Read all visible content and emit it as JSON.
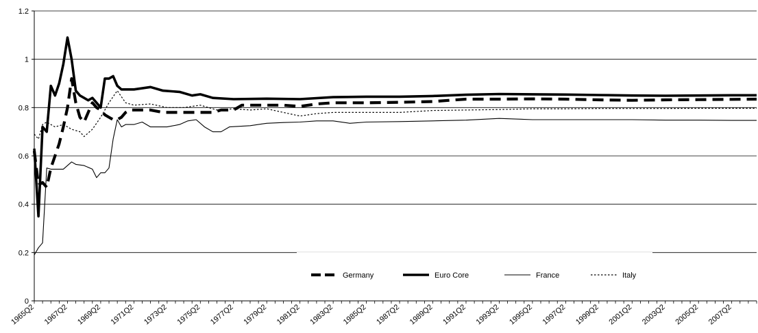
{
  "chart_data": {
    "type": "line",
    "title": "",
    "xlabel": "",
    "ylabel": "",
    "ylim": [
      0,
      1.2
    ],
    "yticks": [
      "0",
      "0.2",
      "0.4",
      "0.6",
      "0.8",
      "1",
      "1.2"
    ],
    "grid": "horizontal",
    "legend_position": "bottom-right",
    "x_tick_labels": [
      "1965Q2",
      "1967Q2",
      "1969Q2",
      "1971Q2",
      "1973Q2",
      "1975Q2",
      "1977Q2",
      "1979Q2",
      "1981Q2",
      "1983Q2",
      "1985Q2",
      "1987Q2",
      "1989Q2",
      "1991Q2",
      "1993Q2",
      "1995Q2",
      "1997Q2",
      "1999Q2",
      "2001Q2",
      "2003Q2",
      "2005Q2",
      "2007Q2"
    ],
    "x_start": "1965Q2",
    "x_end": "2008Q4",
    "series": [
      {
        "name": "Germany",
        "style": "long-dash",
        "color": "#000000",
        "points": [
          [
            "1965Q2",
            0.62
          ],
          [
            "1965Q3",
            0.48
          ],
          [
            "1965Q4",
            0.49
          ],
          [
            "1966Q1",
            0.47
          ],
          [
            "1966Q2",
            0.55
          ],
          [
            "1966Q3",
            0.6
          ],
          [
            "1966Q4",
            0.65
          ],
          [
            "1967Q1",
            0.72
          ],
          [
            "1967Q2",
            0.8
          ],
          [
            "1967Q3",
            0.92
          ],
          [
            "1967Q4",
            0.82
          ],
          [
            "1968Q1",
            0.76
          ],
          [
            "1968Q2",
            0.74
          ],
          [
            "1968Q3",
            0.78
          ],
          [
            "1968Q4",
            0.82
          ],
          [
            "1969Q1",
            0.8
          ],
          [
            "1969Q2",
            0.79
          ],
          [
            "1969Q3",
            0.77
          ],
          [
            "1969Q4",
            0.76
          ],
          [
            "1970Q1",
            0.75
          ],
          [
            "1970Q2",
            0.75
          ],
          [
            "1970Q3",
            0.76
          ],
          [
            "1970Q4",
            0.78
          ],
          [
            "1971Q1",
            0.79
          ],
          [
            "1971Q2",
            0.79
          ],
          [
            "1972Q2",
            0.79
          ],
          [
            "1973Q1",
            0.78
          ],
          [
            "1974Q1",
            0.78
          ],
          [
            "1975Q1",
            0.78
          ],
          [
            "1976Q1",
            0.78
          ],
          [
            "1976Q3",
            0.79
          ],
          [
            "1977Q2",
            0.79
          ],
          [
            "1977Q4",
            0.81
          ],
          [
            "1978Q2",
            0.81
          ],
          [
            "1980Q2",
            0.81
          ],
          [
            "1981Q2",
            0.805
          ],
          [
            "1982Q2",
            0.815
          ],
          [
            "1983Q2",
            0.82
          ],
          [
            "1985Q2",
            0.82
          ],
          [
            "1987Q2",
            0.822
          ],
          [
            "1989Q2",
            0.825
          ],
          [
            "1990Q2",
            0.83
          ],
          [
            "1991Q2",
            0.835
          ],
          [
            "1993Q2",
            0.835
          ],
          [
            "1995Q2",
            0.836
          ],
          [
            "1997Q2",
            0.835
          ],
          [
            "1999Q2",
            0.832
          ],
          [
            "2001Q2",
            0.83
          ],
          [
            "2003Q2",
            0.832
          ],
          [
            "2005Q2",
            0.833
          ],
          [
            "2007Q2",
            0.834
          ],
          [
            "2008Q4",
            0.835
          ]
        ]
      },
      {
        "name": "Euro Core",
        "style": "solid-thick",
        "color": "#000000",
        "points": [
          [
            "1965Q2",
            0.63
          ],
          [
            "1965Q3",
            0.35
          ],
          [
            "1965Q4",
            0.72
          ],
          [
            "1966Q1",
            0.7
          ],
          [
            "1966Q2",
            0.89
          ],
          [
            "1966Q3",
            0.85
          ],
          [
            "1966Q4",
            0.9
          ],
          [
            "1967Q1",
            0.98
          ],
          [
            "1967Q2",
            1.09
          ],
          [
            "1967Q3",
            1.0
          ],
          [
            "1967Q4",
            0.87
          ],
          [
            "1968Q1",
            0.85
          ],
          [
            "1968Q2",
            0.84
          ],
          [
            "1968Q3",
            0.83
          ],
          [
            "1968Q4",
            0.84
          ],
          [
            "1969Q1",
            0.82
          ],
          [
            "1969Q2",
            0.8
          ],
          [
            "1969Q3",
            0.92
          ],
          [
            "1969Q4",
            0.92
          ],
          [
            "1970Q1",
            0.93
          ],
          [
            "1970Q2",
            0.89
          ],
          [
            "1970Q3",
            0.875
          ],
          [
            "1971Q2",
            0.875
          ],
          [
            "1972Q2",
            0.885
          ],
          [
            "1973Q1",
            0.87
          ],
          [
            "1974Q1",
            0.865
          ],
          [
            "1974Q4",
            0.85
          ],
          [
            "1975Q2",
            0.855
          ],
          [
            "1976Q1",
            0.84
          ],
          [
            "1977Q2",
            0.835
          ],
          [
            "1979Q2",
            0.837
          ],
          [
            "1981Q2",
            0.835
          ],
          [
            "1983Q2",
            0.843
          ],
          [
            "1985Q2",
            0.845
          ],
          [
            "1987Q2",
            0.845
          ],
          [
            "1989Q2",
            0.848
          ],
          [
            "1991Q2",
            0.853
          ],
          [
            "1993Q2",
            0.856
          ],
          [
            "1995Q2",
            0.855
          ],
          [
            "1997Q2",
            0.854
          ],
          [
            "1999Q2",
            0.852
          ],
          [
            "2001Q2",
            0.85
          ],
          [
            "2003Q2",
            0.849
          ],
          [
            "2005Q2",
            0.85
          ],
          [
            "2007Q2",
            0.851
          ],
          [
            "2008Q4",
            0.851
          ]
        ]
      },
      {
        "name": "France",
        "style": "solid-thin",
        "color": "#000000",
        "points": [
          [
            "1965Q2",
            0.19
          ],
          [
            "1965Q3",
            0.22
          ],
          [
            "1965Q4",
            0.24
          ],
          [
            "1966Q1",
            0.55
          ],
          [
            "1966Q2",
            0.545
          ],
          [
            "1966Q3",
            0.545
          ],
          [
            "1967Q1",
            0.545
          ],
          [
            "1967Q2",
            0.56
          ],
          [
            "1967Q3",
            0.575
          ],
          [
            "1967Q4",
            0.565
          ],
          [
            "1968Q2",
            0.56
          ],
          [
            "1968Q4",
            0.545
          ],
          [
            "1969Q1",
            0.51
          ],
          [
            "1969Q2",
            0.53
          ],
          [
            "1969Q3",
            0.53
          ],
          [
            "1969Q4",
            0.55
          ],
          [
            "1970Q1",
            0.67
          ],
          [
            "1970Q2",
            0.75
          ],
          [
            "1970Q3",
            0.72
          ],
          [
            "1970Q4",
            0.73
          ],
          [
            "1971Q2",
            0.73
          ],
          [
            "1971Q4",
            0.74
          ],
          [
            "1972Q2",
            0.72
          ],
          [
            "1973Q2",
            0.72
          ],
          [
            "1974Q1",
            0.73
          ],
          [
            "1974Q3",
            0.745
          ],
          [
            "1975Q1",
            0.75
          ],
          [
            "1975Q3",
            0.72
          ],
          [
            "1976Q1",
            0.7
          ],
          [
            "1976Q3",
            0.7
          ],
          [
            "1977Q1",
            0.72
          ],
          [
            "1978Q2",
            0.725
          ],
          [
            "1979Q2",
            0.735
          ],
          [
            "1980Q2",
            0.738
          ],
          [
            "1981Q2",
            0.74
          ],
          [
            "1982Q2",
            0.745
          ],
          [
            "1983Q2",
            0.745
          ],
          [
            "1984Q2",
            0.735
          ],
          [
            "1985Q2",
            0.74
          ],
          [
            "1987Q2",
            0.742
          ],
          [
            "1989Q2",
            0.745
          ],
          [
            "1991Q2",
            0.748
          ],
          [
            "1993Q2",
            0.755
          ],
          [
            "1995Q2",
            0.75
          ],
          [
            "1997Q2",
            0.75
          ],
          [
            "1999Q2",
            0.75
          ],
          [
            "2001Q2",
            0.75
          ],
          [
            "2003Q2",
            0.748
          ],
          [
            "2005Q2",
            0.748
          ],
          [
            "2007Q2",
            0.747
          ],
          [
            "2008Q4",
            0.747
          ]
        ]
      },
      {
        "name": "Italy",
        "style": "dotted",
        "color": "#000000",
        "points": [
          [
            "1965Q2",
            0.69
          ],
          [
            "1965Q3",
            0.67
          ],
          [
            "1965Q4",
            0.73
          ],
          [
            "1966Q1",
            0.74
          ],
          [
            "1966Q2",
            0.73
          ],
          [
            "1966Q3",
            0.72
          ],
          [
            "1967Q1",
            0.73
          ],
          [
            "1967Q2",
            0.72
          ],
          [
            "1967Q3",
            0.71
          ],
          [
            "1968Q1",
            0.7
          ],
          [
            "1968Q2",
            0.68
          ],
          [
            "1968Q4",
            0.71
          ],
          [
            "1969Q2",
            0.76
          ],
          [
            "1969Q4",
            0.82
          ],
          [
            "1970Q2",
            0.87
          ],
          [
            "1970Q4",
            0.82
          ],
          [
            "1971Q2",
            0.81
          ],
          [
            "1972Q2",
            0.815
          ],
          [
            "1973Q2",
            0.8
          ],
          [
            "1974Q2",
            0.8
          ],
          [
            "1975Q2",
            0.81
          ],
          [
            "1976Q2",
            0.79
          ],
          [
            "1977Q2",
            0.795
          ],
          [
            "1978Q2",
            0.79
          ],
          [
            "1979Q2",
            0.795
          ],
          [
            "1980Q2",
            0.78
          ],
          [
            "1981Q2",
            0.765
          ],
          [
            "1982Q2",
            0.775
          ],
          [
            "1983Q2",
            0.78
          ],
          [
            "1985Q2",
            0.78
          ],
          [
            "1987Q2",
            0.78
          ],
          [
            "1989Q2",
            0.788
          ],
          [
            "1991Q2",
            0.79
          ],
          [
            "1993Q2",
            0.792
          ],
          [
            "1995Q2",
            0.795
          ],
          [
            "1997Q2",
            0.795
          ],
          [
            "1999Q2",
            0.796
          ],
          [
            "2001Q2",
            0.796
          ],
          [
            "2003Q2",
            0.796
          ],
          [
            "2005Q2",
            0.797
          ],
          [
            "2007Q2",
            0.797
          ],
          [
            "2008Q4",
            0.797
          ]
        ]
      }
    ]
  }
}
